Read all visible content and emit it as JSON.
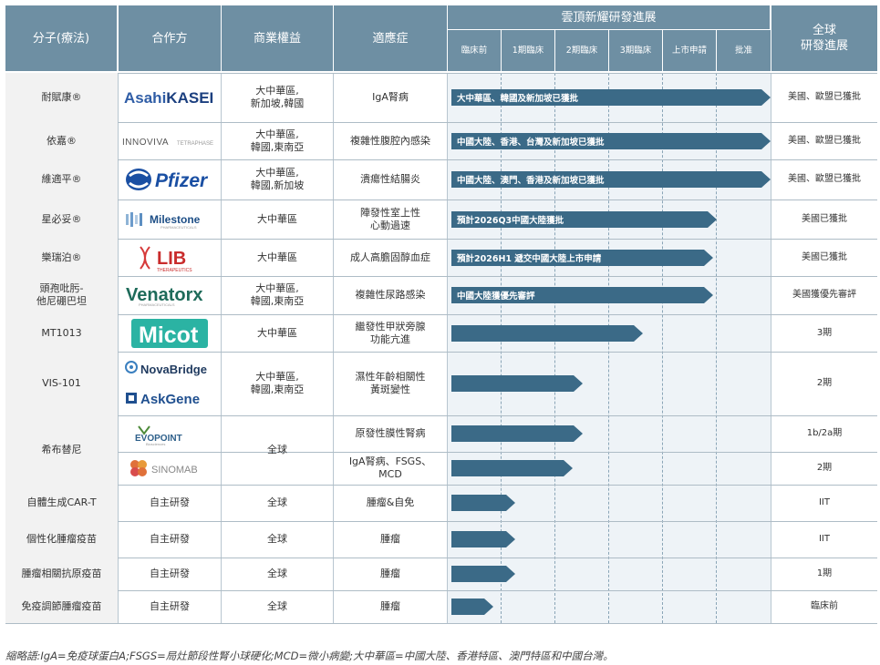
{
  "header": {
    "molecule": "分子(療法)",
    "partner": "合作方",
    "rights": "商業權益",
    "indication": "適應症",
    "progress_title": "雲頂新耀研發進展",
    "stages": [
      "臨床前",
      "1期臨床",
      "2期臨床",
      "3期臨床",
      "上市申請",
      "批准"
    ],
    "global": "全球\n研發進展"
  },
  "colors": {
    "header_bg": "#6e8fa3",
    "bar": "#3b6a87",
    "shade": "#eef3f7"
  },
  "rows": [
    {
      "molecule": "耐賦康®",
      "partner": "AsahiKASEI",
      "logo": "asahi-kasei-logo",
      "rights": "大中華區,\n新加坡,韓國",
      "indication": "IgA腎病",
      "bar_text": "大中華區、韓國及新加坡已獲批",
      "progress": 1.0,
      "global": "美國、歐盟已獲批"
    },
    {
      "molecule": "依嘉®",
      "partner": "INNOVIVA",
      "logo": "innoviva-logo",
      "rights": "大中華區,\n韓國,東南亞",
      "indication": "複雜性腹腔內感染",
      "bar_text": "中國大陸、香港、台灣及新加坡已獲批",
      "progress": 1.0,
      "global": "美國、歐盟已獲批"
    },
    {
      "molecule": "維適平®",
      "partner": "Pfizer",
      "logo": "pfizer-logo",
      "rights": "大中華區,\n韓國,新加坡",
      "indication": "潰瘍性結腸炎",
      "bar_text": "中國大陸、澳門、香港及新加坡已獲批",
      "progress": 1.0,
      "global": "美國、歐盟已獲批"
    },
    {
      "molecule": "星必妥®",
      "partner": "Milestone",
      "logo": "milestone-logo",
      "rights": "大中華區",
      "indication": "陣發性室上性\n心動過速",
      "bar_text": "預計2026Q3中國大陸獲批",
      "progress": 0.83,
      "global": "美國已獲批"
    },
    {
      "molecule": "樂瑞泊®",
      "partner": "LIB",
      "logo": "lib-logo",
      "rights": "大中華區",
      "indication": "成人高膽固醇血症",
      "bar_text": "預計2026H1 遞交中國大陸上市申請",
      "progress": 0.82,
      "global": "美國已獲批"
    },
    {
      "molecule": "頭孢吡肟-\n他尼硼巴坦",
      "partner": "Venatorx",
      "logo": "venatorx-logo",
      "rights": "大中華區,\n韓國,東南亞",
      "indication": "複雜性尿路感染",
      "bar_text": "中國大陸獲優先審評",
      "progress": 0.82,
      "global": "美國獲優先審評"
    },
    {
      "molecule": "MT1013",
      "partner": "Micot",
      "logo": "micot-logo",
      "rights": "大中華區",
      "indication": "繼發性甲狀旁腺\n功能亢進",
      "bar_text": "",
      "progress": 0.6,
      "global": "3期"
    },
    {
      "molecule": "VIS-101",
      "partner": "NovaBridge / AskGene",
      "logo": "novabridge-askgene-logo",
      "rights": "大中華區,\n韓國,東南亞",
      "indication": "濕性年齡相關性\n黃斑變性",
      "bar_text": "",
      "progress": 0.41,
      "global": "2期"
    },
    {
      "molecule": "希布替尼",
      "partner": "EVOPOINT",
      "logo": "evopoint-logo",
      "rights": "全球",
      "indication": "原發性膜性腎病",
      "bar_text": "",
      "progress": 0.41,
      "global": "1b/2a期"
    },
    {
      "molecule": "",
      "partner": "SINOMAB",
      "logo": "sinomab-logo",
      "rights": "",
      "indication": "IgA腎病、FSGS、\nMCD",
      "bar_text": "",
      "progress": 0.38,
      "global": "2期"
    },
    {
      "molecule": "自體生成CAR-T",
      "partner": "自主研發",
      "logo": "",
      "rights": "全球",
      "indication": "腫瘤&自免",
      "bar_text": "",
      "progress": 0.2,
      "global": "IIT"
    },
    {
      "molecule": "個性化腫瘤疫苗",
      "partner": "自主研發",
      "logo": "",
      "rights": "全球",
      "indication": "腫瘤",
      "bar_text": "",
      "progress": 0.2,
      "global": "IIT"
    },
    {
      "molecule": "腫瘤相關抗原疫苗",
      "partner": "自主研發",
      "logo": "",
      "rights": "全球",
      "indication": "腫瘤",
      "bar_text": "",
      "progress": 0.2,
      "global": "1期"
    },
    {
      "molecule": "免疫調節腫瘤疫苗",
      "partner": "自主研發",
      "logo": "",
      "rights": "全球",
      "indication": "腫瘤",
      "bar_text": "",
      "progress": 0.13,
      "global": "臨床前"
    }
  ],
  "footnote": "縮略語:IgA=免疫球蛋白A;FSGS=局灶節段性腎小球硬化;MCD=微小病變;大中華區=中國大陸、香港特區、澳門特區和中國台灣。"
}
